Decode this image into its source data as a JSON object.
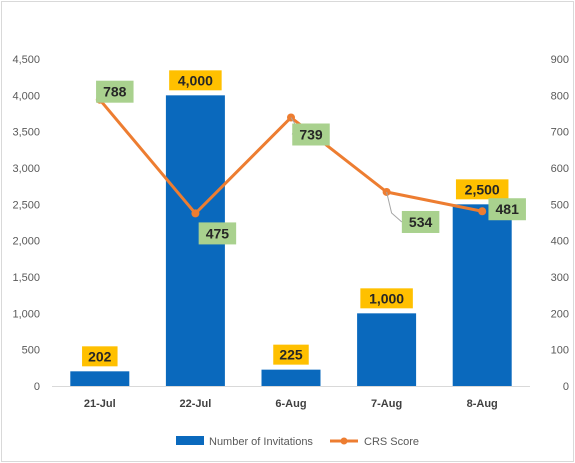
{
  "chart_data": {
    "type": "bar",
    "categories": [
      "21-Jul",
      "22-Jul",
      "6-Aug",
      "7-Aug",
      "8-Aug"
    ],
    "series": [
      {
        "name": "Number of Invitations",
        "type": "bar",
        "axis": "left",
        "color": "#0a69bd",
        "values": [
          202,
          4000,
          225,
          1000,
          2500
        ],
        "labels": [
          "202",
          "4,000",
          "225",
          "1,000",
          "2,500"
        ],
        "label_bg": "#ffc000"
      },
      {
        "name": "CRS Score",
        "type": "line",
        "axis": "right",
        "color": "#ed7d31",
        "values": [
          788,
          475,
          739,
          534,
          481
        ],
        "labels": [
          "788",
          "475",
          "739",
          "534",
          "481"
        ],
        "label_bg": "#a9d18e"
      }
    ],
    "y_left": {
      "range": [
        0,
        4500
      ],
      "ticks": [
        "0",
        "500",
        "1,000",
        "1,500",
        "2,000",
        "2,500",
        "3,000",
        "3,500",
        "4,000",
        "4,500"
      ]
    },
    "y_right": {
      "range": [
        0,
        900
      ],
      "ticks": [
        "0",
        "100",
        "200",
        "300",
        "400",
        "500",
        "600",
        "700",
        "800",
        "900"
      ]
    },
    "grid": false,
    "legend": "bottom"
  }
}
